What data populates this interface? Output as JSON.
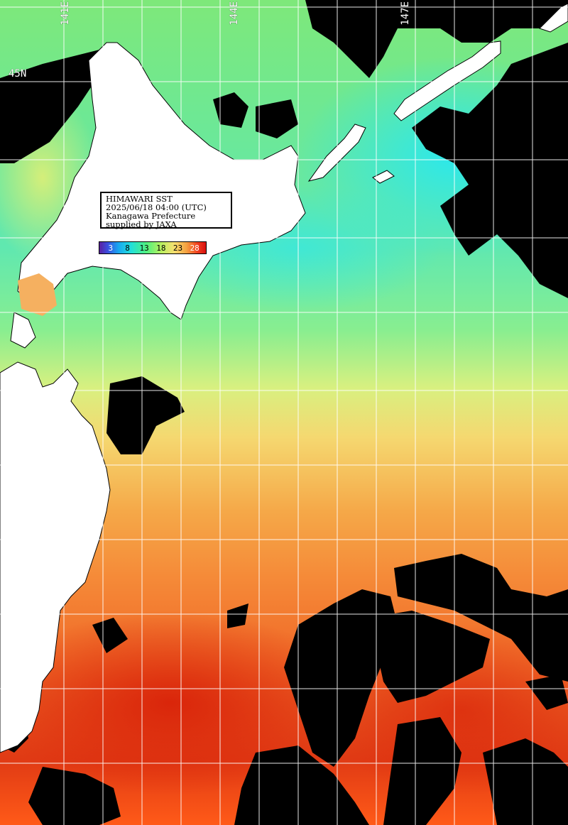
{
  "info": {
    "line1": "HIMAWARI SST",
    "line2": "2025/06/18 04:00 (UTC)",
    "line3": "Kanagawa Prefecture",
    "line4": "supplied by JAXA"
  },
  "colorbar": {
    "ticks": [
      "3",
      "8",
      "13",
      "18",
      "23",
      "28"
    ],
    "colors": [
      "#5a1fa0",
      "#19a8f0",
      "#50f080",
      "#f5e070",
      "#f5a040",
      "#d81010"
    ]
  },
  "labels": {
    "lat_45": "45N",
    "lon_141": "141E",
    "lon_144": "144E",
    "lon_147": "147E"
  },
  "palette": {
    "land": "#ffffff",
    "no_data": "#000000",
    "grid": "#ffffff",
    "cool": "#30e8e0",
    "mild": "#80f080",
    "warm": "#f5d870",
    "hot": "#f56020",
    "hottest": "#e02010"
  }
}
